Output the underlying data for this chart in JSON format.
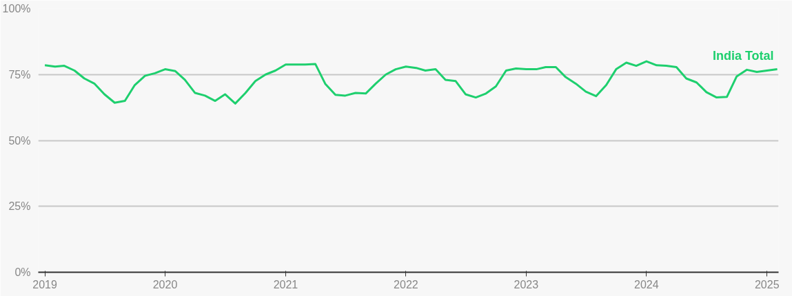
{
  "chart_data": {
    "type": "line",
    "x": [
      "2019-01",
      "2019-02",
      "2019-03",
      "2019-04",
      "2019-05",
      "2019-06",
      "2019-07",
      "2019-08",
      "2019-09",
      "2019-10",
      "2019-11",
      "2019-12",
      "2020-01",
      "2020-02",
      "2020-03",
      "2020-04",
      "2020-05",
      "2020-06",
      "2020-07",
      "2020-08",
      "2020-09",
      "2020-10",
      "2020-11",
      "2020-12",
      "2021-01",
      "2021-02",
      "2021-03",
      "2021-04",
      "2021-05",
      "2021-06",
      "2021-07",
      "2021-08",
      "2021-09",
      "2021-10",
      "2021-11",
      "2021-12",
      "2022-01",
      "2022-02",
      "2022-03",
      "2022-04",
      "2022-05",
      "2022-06",
      "2022-07",
      "2022-08",
      "2022-09",
      "2022-10",
      "2022-11",
      "2022-12",
      "2023-01",
      "2023-02",
      "2023-03",
      "2023-04",
      "2023-05",
      "2023-06",
      "2023-07",
      "2023-08",
      "2023-09",
      "2023-10",
      "2023-11",
      "2023-12",
      "2024-01",
      "2024-02",
      "2024-03",
      "2024-04",
      "2024-05",
      "2024-06",
      "2024-07",
      "2024-08",
      "2024-09",
      "2024-10",
      "2024-11",
      "2024-12",
      "2025-01",
      "2025-02"
    ],
    "series": [
      {
        "name": "India Total",
        "color": "#1ecf6e",
        "values": [
          78.5,
          78,
          78.3,
          76.5,
          73.5,
          71.5,
          67.5,
          64.3,
          65,
          71,
          74.5,
          75.5,
          77,
          76.3,
          73,
          68,
          67,
          65,
          67.5,
          64,
          68,
          72.5,
          75,
          76.5,
          78.8,
          78.8,
          78.8,
          79,
          71.5,
          67.3,
          67,
          68,
          67.8,
          71.5,
          75,
          77,
          78,
          77.5,
          76.5,
          77,
          73,
          72.5,
          67.5,
          66.3,
          67.8,
          70.5,
          76.5,
          77.3,
          77,
          77,
          77.8,
          77.8,
          74,
          71.5,
          68.5,
          66.8,
          71,
          77,
          79.5,
          78.3,
          80,
          78.5,
          78.3,
          77.8,
          73.5,
          72,
          68.3,
          66.3,
          66.5,
          74.3,
          76.8,
          76,
          76.5,
          77
        ]
      }
    ],
    "xlim": [
      "2018-12-12",
      "2025-02-05"
    ],
    "xticks": [
      {
        "value": "2019-01-01",
        "label": "2019"
      },
      {
        "value": "2020-01-01",
        "label": "2020"
      },
      {
        "value": "2021-01-01",
        "label": "2021"
      },
      {
        "value": "2022-01-01",
        "label": "2022"
      },
      {
        "value": "2023-01-01",
        "label": "2023"
      },
      {
        "value": "2024-01-01",
        "label": "2024"
      },
      {
        "value": "2025-01-01",
        "label": "2025"
      }
    ],
    "ylim": [
      0,
      100
    ],
    "yticks": [
      {
        "value": 0,
        "label": "0%"
      },
      {
        "value": 25,
        "label": "25%"
      },
      {
        "value": 50,
        "label": "50%"
      },
      {
        "value": 75,
        "label": "75%"
      },
      {
        "value": 100,
        "label": "100%"
      }
    ],
    "grid": "y",
    "marker": "none",
    "line_style": "solid"
  }
}
